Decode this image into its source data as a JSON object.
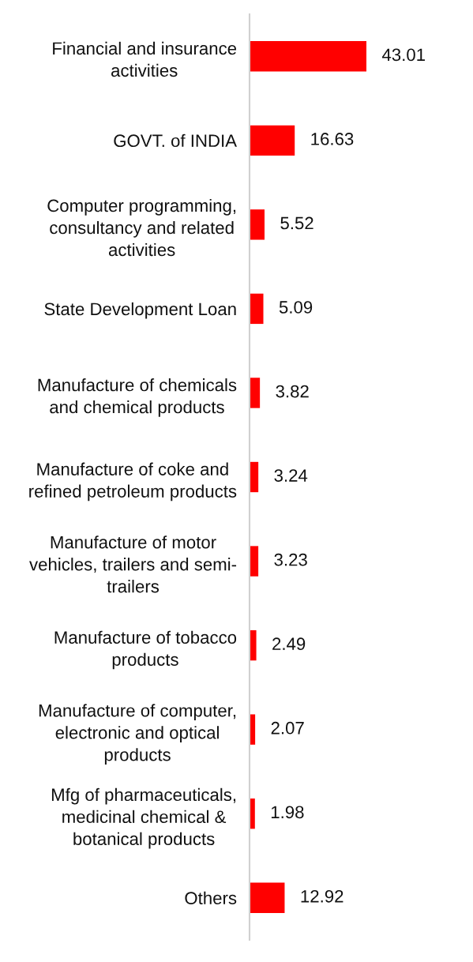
{
  "chart_data": {
    "type": "bar",
    "orientation": "horizontal",
    "categories": [
      "Financial and insurance\nactivities",
      "GOVT. of INDIA",
      "Computer programming,\nconsultancy and related\nactivities",
      "State Development Loan",
      "Manufacture of chemicals\nand chemical products",
      "Manufacture of coke and\nrefined petroleum products",
      "Manufacture of motor\nvehicles, trailers and semi-\ntrailers",
      "Manufacture of tobacco\nproducts",
      "Manufacture of computer,\nelectronic and optical\nproducts",
      "Mfg of pharmaceuticals,\nmedicinal chemical &\nbotanical products",
      "Others"
    ],
    "values": [
      43.01,
      16.63,
      5.52,
      5.09,
      3.82,
      3.24,
      3.23,
      2.49,
      2.07,
      1.98,
      12.92
    ],
    "color": "#ff0000",
    "data_labels": true,
    "tick_labels": "y"
  }
}
